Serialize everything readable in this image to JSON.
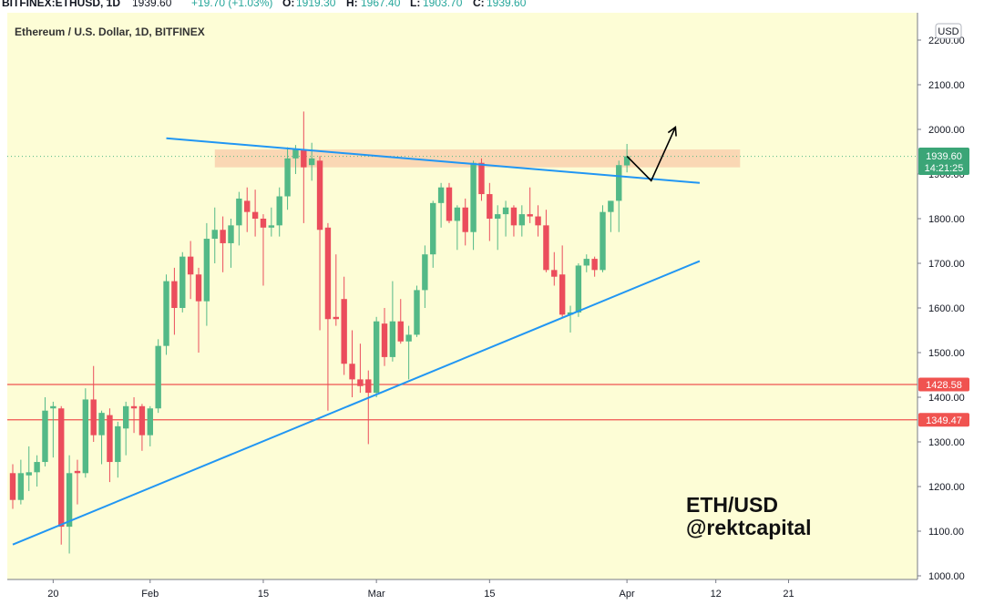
{
  "header": {
    "symbol": "BITFINEX:ETHUSD, 1D",
    "last": "1939.60",
    "change": "+19.70 (+1.03%)",
    "o_label": "O:",
    "o": "1919.30",
    "h_label": "H:",
    "h": "1967.40",
    "l_label": "L:",
    "l": "1903.70",
    "c_label": "C:",
    "c": "1939.60"
  },
  "chart_title": "Ethereum / U.S. Dollar, 1D, BITFINEX",
  "currency_badge": "USD",
  "price_tag": {
    "price": "1939.60",
    "countdown": "14:21:25"
  },
  "level_tags": [
    "1428.58",
    "1349.47"
  ],
  "watermark": {
    "line1": "ETH/USD",
    "line2": "@rektcapital"
  },
  "colors": {
    "background": "#fdfdd6",
    "up": "#53b987",
    "down": "#eb4d5c",
    "trendline": "#2196f3",
    "level": "#f05350",
    "zone": "#f8c9a8",
    "tag_green": "#3ba577"
  },
  "chart_data": {
    "type": "candlestick",
    "title": "Ethereum / U.S. Dollar, 1D, BITFINEX",
    "y_axis": {
      "range": [
        1000,
        2250
      ],
      "ticks": [
        "1000.00",
        "1100.00",
        "1200.00",
        "1300.00",
        "1400.00",
        "1500.00",
        "1600.00",
        "1700.00",
        "1800.00",
        "1900.00",
        "2000.00",
        "2100.00",
        "2200.00"
      ]
    },
    "x_axis": {
      "range": [
        "2021-01-15",
        "2021-04-26"
      ],
      "ticks": [
        {
          "date": "2021-01-20",
          "label": "20"
        },
        {
          "date": "2021-02-01",
          "label": "Feb"
        },
        {
          "date": "2021-02-15",
          "label": "15"
        },
        {
          "date": "2021-03-01",
          "label": "Mar"
        },
        {
          "date": "2021-03-15",
          "label": "15"
        },
        {
          "date": "2021-04-01",
          "label": "Apr"
        },
        {
          "date": "2021-04-12",
          "label": "12"
        },
        {
          "date": "2021-04-21",
          "label": "21"
        }
      ]
    },
    "candles": [
      {
        "d": "2021-01-15",
        "o": 1230,
        "h": 1250,
        "l": 1150,
        "c": 1170
      },
      {
        "d": "2021-01-16",
        "o": 1170,
        "h": 1260,
        "l": 1160,
        "c": 1230
      },
      {
        "d": "2021-01-17",
        "o": 1225,
        "h": 1290,
        "l": 1190,
        "c": 1232
      },
      {
        "d": "2021-01-18",
        "o": 1232,
        "h": 1270,
        "l": 1200,
        "c": 1255
      },
      {
        "d": "2021-01-19",
        "o": 1255,
        "h": 1400,
        "l": 1245,
        "c": 1370
      },
      {
        "d": "2021-01-20",
        "o": 1375,
        "h": 1390,
        "l": 1265,
        "c": 1380
      },
      {
        "d": "2021-01-21",
        "o": 1375,
        "h": 1380,
        "l": 1070,
        "c": 1110
      },
      {
        "d": "2021-01-22",
        "o": 1110,
        "h": 1270,
        "l": 1050,
        "c": 1230
      },
      {
        "d": "2021-01-23",
        "o": 1235,
        "h": 1260,
        "l": 1160,
        "c": 1230
      },
      {
        "d": "2021-01-24",
        "o": 1230,
        "h": 1420,
        "l": 1220,
        "c": 1395
      },
      {
        "d": "2021-01-25",
        "o": 1395,
        "h": 1470,
        "l": 1300,
        "c": 1315
      },
      {
        "d": "2021-01-26",
        "o": 1315,
        "h": 1370,
        "l": 1250,
        "c": 1365
      },
      {
        "d": "2021-01-27",
        "o": 1360,
        "h": 1375,
        "l": 1210,
        "c": 1255
      },
      {
        "d": "2021-01-28",
        "o": 1255,
        "h": 1345,
        "l": 1220,
        "c": 1335
      },
      {
        "d": "2021-01-29",
        "o": 1330,
        "h": 1390,
        "l": 1270,
        "c": 1380
      },
      {
        "d": "2021-01-30",
        "o": 1380,
        "h": 1400,
        "l": 1320,
        "c": 1375
      },
      {
        "d": "2021-01-31",
        "o": 1380,
        "h": 1385,
        "l": 1280,
        "c": 1315
      },
      {
        "d": "2021-02-01",
        "o": 1315,
        "h": 1380,
        "l": 1290,
        "c": 1375
      },
      {
        "d": "2021-02-02",
        "o": 1375,
        "h": 1530,
        "l": 1365,
        "c": 1515
      },
      {
        "d": "2021-02-03",
        "o": 1515,
        "h": 1675,
        "l": 1495,
        "c": 1660
      },
      {
        "d": "2021-02-04",
        "o": 1660,
        "h": 1690,
        "l": 1540,
        "c": 1600
      },
      {
        "d": "2021-02-05",
        "o": 1600,
        "h": 1725,
        "l": 1590,
        "c": 1715
      },
      {
        "d": "2021-02-06",
        "o": 1715,
        "h": 1750,
        "l": 1620,
        "c": 1675
      },
      {
        "d": "2021-02-07",
        "o": 1675,
        "h": 1690,
        "l": 1500,
        "c": 1615
      },
      {
        "d": "2021-02-08",
        "o": 1615,
        "h": 1790,
        "l": 1560,
        "c": 1755
      },
      {
        "d": "2021-02-09",
        "o": 1755,
        "h": 1825,
        "l": 1700,
        "c": 1775
      },
      {
        "d": "2021-02-10",
        "o": 1775,
        "h": 1805,
        "l": 1680,
        "c": 1745
      },
      {
        "d": "2021-02-11",
        "o": 1745,
        "h": 1800,
        "l": 1690,
        "c": 1785
      },
      {
        "d": "2021-02-12",
        "o": 1785,
        "h": 1860,
        "l": 1740,
        "c": 1845
      },
      {
        "d": "2021-02-13",
        "o": 1840,
        "h": 1870,
        "l": 1770,
        "c": 1815
      },
      {
        "d": "2021-02-14",
        "o": 1815,
        "h": 1865,
        "l": 1760,
        "c": 1800
      },
      {
        "d": "2021-02-15",
        "o": 1800,
        "h": 1810,
        "l": 1650,
        "c": 1780
      },
      {
        "d": "2021-02-16",
        "o": 1780,
        "h": 1825,
        "l": 1760,
        "c": 1785
      },
      {
        "d": "2021-02-17",
        "o": 1785,
        "h": 1870,
        "l": 1760,
        "c": 1850
      },
      {
        "d": "2021-02-18",
        "o": 1850,
        "h": 1960,
        "l": 1820,
        "c": 1935
      },
      {
        "d": "2021-02-19",
        "o": 1935,
        "h": 1965,
        "l": 1900,
        "c": 1955
      },
      {
        "d": "2021-02-20",
        "o": 1955,
        "h": 2040,
        "l": 1790,
        "c": 1915
      },
      {
        "d": "2021-02-21",
        "o": 1920,
        "h": 1970,
        "l": 1885,
        "c": 1935
      },
      {
        "d": "2021-02-22",
        "o": 1930,
        "h": 1940,
        "l": 1550,
        "c": 1775
      },
      {
        "d": "2021-02-23",
        "o": 1780,
        "h": 1790,
        "l": 1370,
        "c": 1575
      },
      {
        "d": "2021-02-24",
        "o": 1580,
        "h": 1720,
        "l": 1560,
        "c": 1575
      },
      {
        "d": "2021-02-25",
        "o": 1620,
        "h": 1670,
        "l": 1450,
        "c": 1475
      },
      {
        "d": "2021-02-26",
        "o": 1475,
        "h": 1550,
        "l": 1400,
        "c": 1440
      },
      {
        "d": "2021-02-27",
        "o": 1440,
        "h": 1520,
        "l": 1410,
        "c": 1425
      },
      {
        "d": "2021-02-28",
        "o": 1440,
        "h": 1460,
        "l": 1295,
        "c": 1410
      },
      {
        "d": "2021-03-01",
        "o": 1410,
        "h": 1580,
        "l": 1400,
        "c": 1570
      },
      {
        "d": "2021-03-02",
        "o": 1565,
        "h": 1600,
        "l": 1470,
        "c": 1490
      },
      {
        "d": "2021-03-03",
        "o": 1490,
        "h": 1660,
        "l": 1480,
        "c": 1570
      },
      {
        "d": "2021-03-04",
        "o": 1570,
        "h": 1620,
        "l": 1520,
        "c": 1525
      },
      {
        "d": "2021-03-05",
        "o": 1525,
        "h": 1560,
        "l": 1440,
        "c": 1540
      },
      {
        "d": "2021-03-06",
        "o": 1540,
        "h": 1650,
        "l": 1535,
        "c": 1640
      },
      {
        "d": "2021-03-07",
        "o": 1640,
        "h": 1740,
        "l": 1600,
        "c": 1720
      },
      {
        "d": "2021-03-08",
        "o": 1720,
        "h": 1840,
        "l": 1690,
        "c": 1835
      },
      {
        "d": "2021-03-09",
        "o": 1835,
        "h": 1880,
        "l": 1780,
        "c": 1870
      },
      {
        "d": "2021-03-10",
        "o": 1870,
        "h": 1880,
        "l": 1790,
        "c": 1795
      },
      {
        "d": "2021-03-11",
        "o": 1795,
        "h": 1830,
        "l": 1730,
        "c": 1825
      },
      {
        "d": "2021-03-12",
        "o": 1825,
        "h": 1845,
        "l": 1740,
        "c": 1770
      },
      {
        "d": "2021-03-13",
        "o": 1770,
        "h": 1930,
        "l": 1730,
        "c": 1925
      },
      {
        "d": "2021-03-14",
        "o": 1925,
        "h": 1935,
        "l": 1840,
        "c": 1855
      },
      {
        "d": "2021-03-15",
        "o": 1855,
        "h": 1880,
        "l": 1750,
        "c": 1800
      },
      {
        "d": "2021-03-16",
        "o": 1800,
        "h": 1830,
        "l": 1730,
        "c": 1810
      },
      {
        "d": "2021-03-17",
        "o": 1810,
        "h": 1840,
        "l": 1760,
        "c": 1825
      },
      {
        "d": "2021-03-18",
        "o": 1825,
        "h": 1830,
        "l": 1760,
        "c": 1785
      },
      {
        "d": "2021-03-19",
        "o": 1785,
        "h": 1830,
        "l": 1760,
        "c": 1810
      },
      {
        "d": "2021-03-20",
        "o": 1810,
        "h": 1870,
        "l": 1790,
        "c": 1805
      },
      {
        "d": "2021-03-21",
        "o": 1805,
        "h": 1830,
        "l": 1760,
        "c": 1785
      },
      {
        "d": "2021-03-22",
        "o": 1785,
        "h": 1820,
        "l": 1680,
        "c": 1685
      },
      {
        "d": "2021-03-23",
        "o": 1685,
        "h": 1725,
        "l": 1650,
        "c": 1670
      },
      {
        "d": "2021-03-24",
        "o": 1675,
        "h": 1740,
        "l": 1580,
        "c": 1585
      },
      {
        "d": "2021-03-25",
        "o": 1585,
        "h": 1605,
        "l": 1545,
        "c": 1590
      },
      {
        "d": "2021-03-26",
        "o": 1590,
        "h": 1700,
        "l": 1580,
        "c": 1695
      },
      {
        "d": "2021-03-27",
        "o": 1695,
        "h": 1720,
        "l": 1680,
        "c": 1710
      },
      {
        "d": "2021-03-28",
        "o": 1710,
        "h": 1715,
        "l": 1670,
        "c": 1685
      },
      {
        "d": "2021-03-29",
        "o": 1685,
        "h": 1830,
        "l": 1680,
        "c": 1815
      },
      {
        "d": "2021-03-30",
        "o": 1815,
        "h": 1840,
        "l": 1770,
        "c": 1840
      },
      {
        "d": "2021-03-31",
        "o": 1840,
        "h": 1930,
        "l": 1770,
        "c": 1920
      },
      {
        "d": "2021-04-01",
        "o": 1919.3,
        "h": 1967.4,
        "l": 1903.7,
        "c": 1939.6
      }
    ],
    "horizontal_levels": [
      1428.58,
      1349.47
    ],
    "resistance_zone": {
      "from_date": "2021-02-09",
      "to_date": "2021-04-15",
      "low": 1915,
      "high": 1955
    },
    "trendlines": [
      {
        "name": "descending resistance",
        "points": [
          [
            "2021-02-03",
            1980
          ],
          [
            "2021-04-10",
            1880
          ]
        ]
      },
      {
        "name": "ascending support",
        "points": [
          [
            "2021-01-15",
            1070
          ],
          [
            "2021-04-10",
            1705
          ]
        ]
      }
    ],
    "projection_arrow": [
      [
        "2021-04-01",
        1940
      ],
      [
        "2021-04-04",
        1885
      ],
      [
        "2021-04-07",
        2005
      ]
    ],
    "last_price_line": 1939.6,
    "grid": false
  }
}
